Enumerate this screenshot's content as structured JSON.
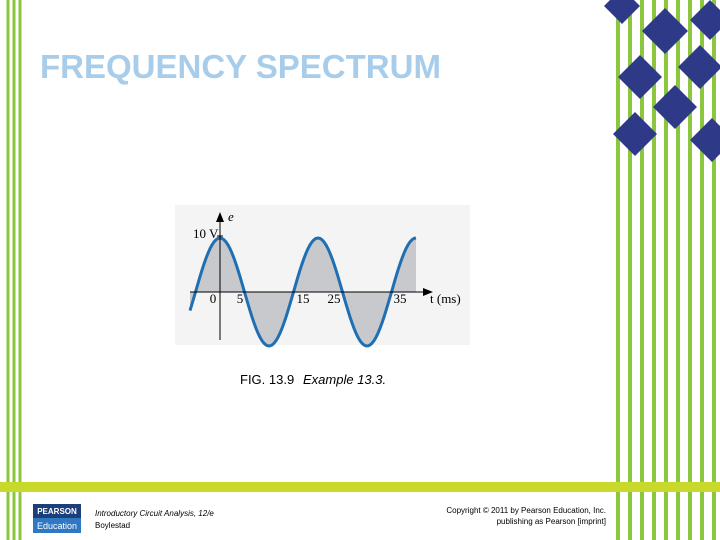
{
  "header": {
    "title": "FREQUENCY SPECTRUM"
  },
  "figure": {
    "axis_labels": {
      "y": "e",
      "amplitude": "10 V",
      "x": "t (ms)"
    },
    "x_labels": [
      "0",
      "5",
      "15",
      "25",
      "35"
    ],
    "caption": {
      "number": "FIG. 13.9",
      "text": "Example 13.3."
    }
  },
  "footer": {
    "logo": {
      "top": "PEARSON",
      "bottom": "Education"
    },
    "book": [
      "Introductory Circuit Analysis, 12/e",
      "Boylestad"
    ],
    "copyright": [
      "Copyright © 2011 by Pearson Education, Inc.",
      "publishing as Pearson [imprint]"
    ]
  }
}
